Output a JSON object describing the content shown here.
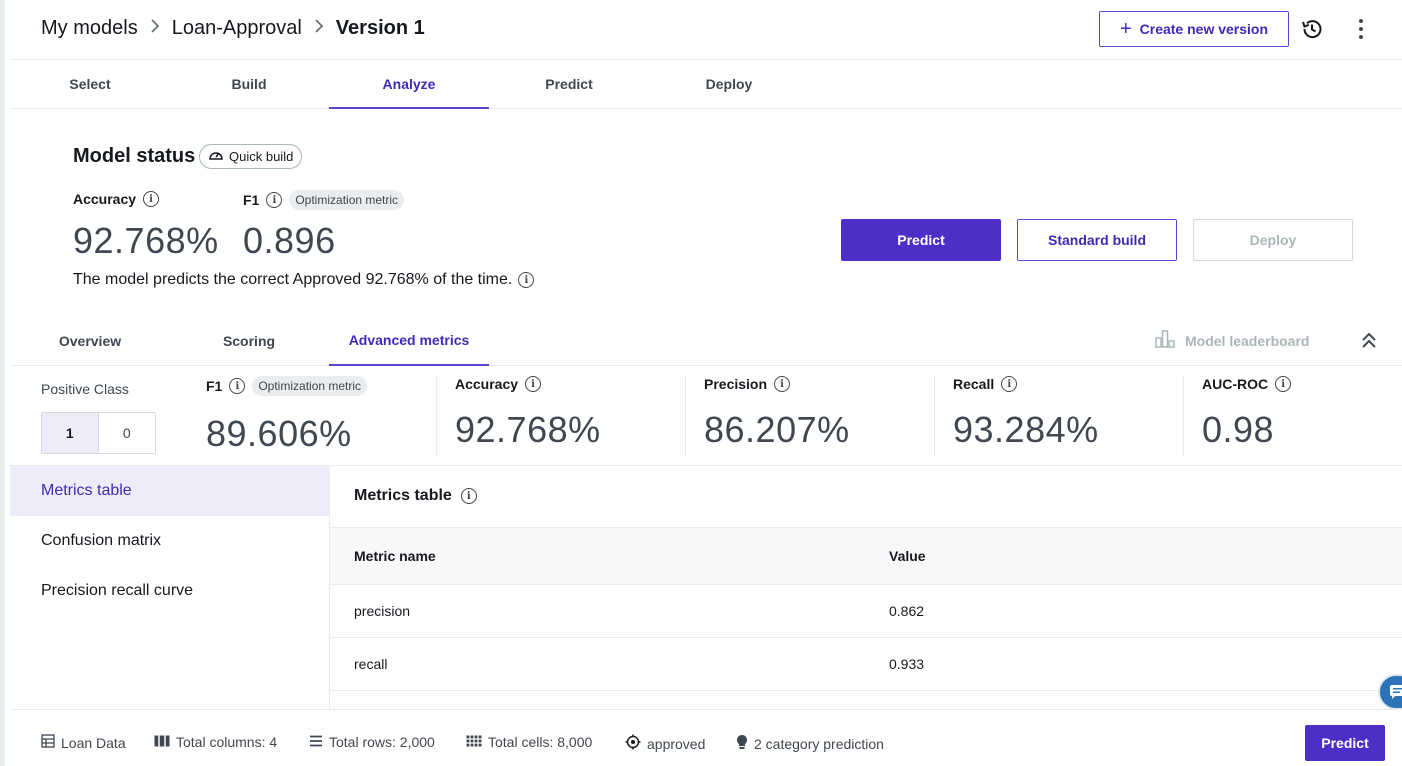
{
  "breadcrumb": {
    "items": [
      "My models",
      "Loan-Approval",
      "Version 1"
    ],
    "separator": ">"
  },
  "header": {
    "create_version_label": "Create new version",
    "history_icon": "history-icon",
    "more_icon": "kebab-icon"
  },
  "tabs": [
    "Select",
    "Build",
    "Analyze",
    "Predict",
    "Deploy"
  ],
  "active_tab": "Analyze",
  "model_status": {
    "title": "Model status",
    "build_badge": "Quick build",
    "accuracy_label": "Accuracy",
    "accuracy_value": "92.768%",
    "f1_label": "F1",
    "f1_badge": "Optimization metric",
    "f1_value": "0.896",
    "sentence": "The model predicts the correct Approved 92.768% of the time.",
    "buttons": {
      "predict": "Predict",
      "standard_build": "Standard build",
      "deploy": "Deploy"
    }
  },
  "subtabs": [
    "Overview",
    "Scoring",
    "Advanced metrics"
  ],
  "active_subtab": "Advanced metrics",
  "leaderboard_label": "Model leaderboard",
  "positive_class": {
    "label": "Positive Class",
    "options": [
      "1",
      "0"
    ],
    "selected": "1"
  },
  "metrics": {
    "f1": {
      "label": "F1",
      "badge": "Optimization metric",
      "value": "89.606%"
    },
    "accuracy": {
      "label": "Accuracy",
      "value": "92.768%"
    },
    "precision": {
      "label": "Precision",
      "value": "86.207%"
    },
    "recall": {
      "label": "Recall",
      "value": "93.284%"
    },
    "auc_roc": {
      "label": "AUC-ROC",
      "value": "0.98"
    }
  },
  "left_nav": [
    "Metrics table",
    "Confusion matrix",
    "Precision recall curve"
  ],
  "active_nav": "Metrics table",
  "metrics_table": {
    "title": "Metrics table",
    "columns": [
      "Metric name",
      "Value"
    ],
    "rows": [
      [
        "precision",
        "0.862"
      ],
      [
        "recall",
        "0.933"
      ]
    ]
  },
  "footer": {
    "dataset": "Loan Data",
    "total_columns": "Total columns: 4",
    "total_rows": "Total rows: 2,000",
    "total_cells": "Total cells: 8,000",
    "target": "approved",
    "prediction_type": "2 category prediction",
    "predict_label": "Predict"
  },
  "colors": {
    "accent": "#5a45cf",
    "primary_button": "#4d2fc8",
    "selected_bg": "#eeecfb"
  }
}
